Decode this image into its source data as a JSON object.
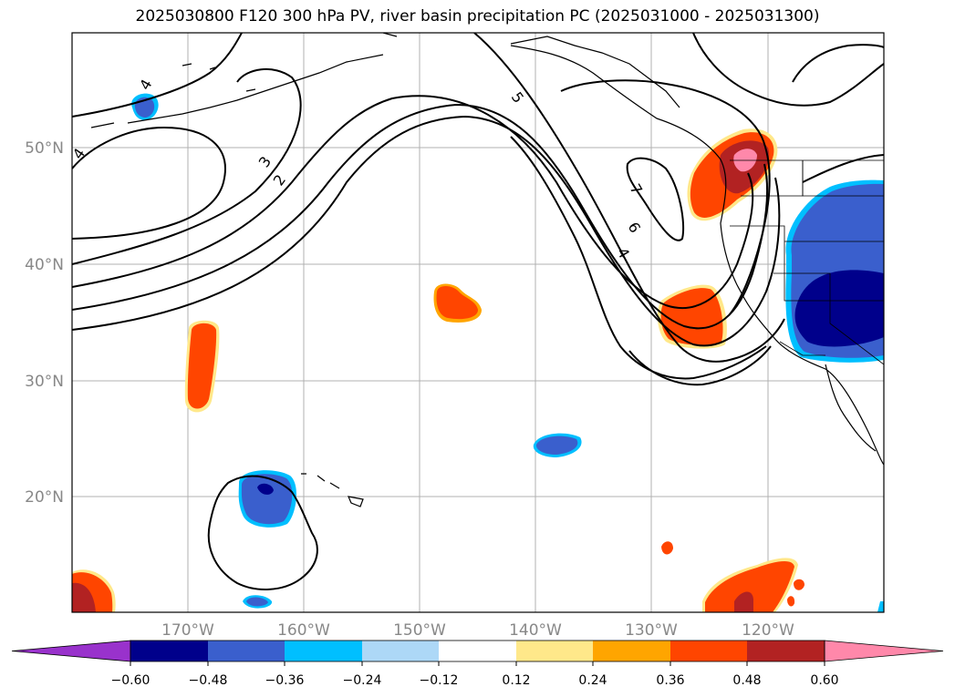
{
  "title": "2025030800 F120 300 hPa PV, river basin precipitation PC (2025031000 - 2025031300)",
  "lat_labels": [
    "50°N",
    "40°N",
    "30°N",
    "20°N"
  ],
  "lon_labels": [
    "170°W",
    "160°W",
    "150°W",
    "140°W",
    "130°W",
    "120°W"
  ],
  "contour_labels": [
    "4",
    "4",
    "3",
    "2",
    "5",
    "7",
    "6",
    "4"
  ],
  "colorbar": {
    "ticks": [
      "−0.60",
      "−0.48",
      "−0.36",
      "−0.24",
      "−0.12",
      "0.12",
      "0.24",
      "0.36",
      "0.48",
      "0.60"
    ],
    "colors": [
      "#9932cc",
      "#00008b",
      "#3a5fcd",
      "#00bfff",
      "#add8f7",
      "#ffffff",
      "#ffe88a",
      "#ffa500",
      "#ff4500",
      "#b22222",
      "#ff88aa"
    ]
  }
}
